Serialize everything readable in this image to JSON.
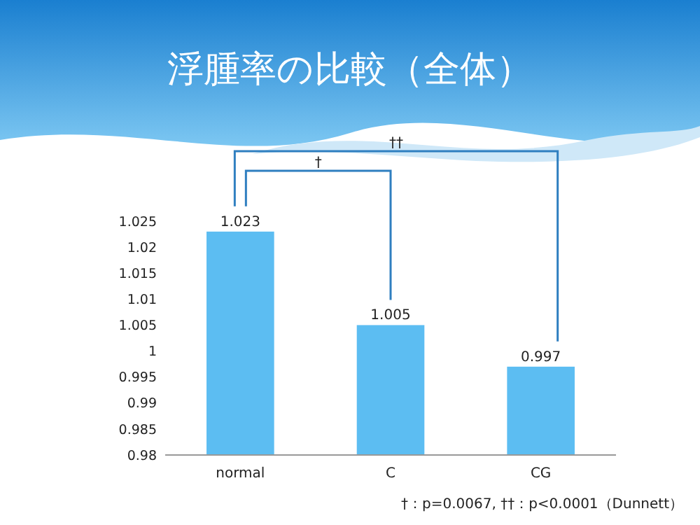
{
  "chart_data": {
    "type": "bar",
    "title": "浮腫率の比較（全体）",
    "categories": [
      "normal",
      "C",
      "CG"
    ],
    "values": [
      1.023,
      1.005,
      0.997
    ],
    "color": "#5cbdf2",
    "ylim": [
      0.98,
      1.025
    ],
    "yticks": [
      0.98,
      0.985,
      0.99,
      0.995,
      1,
      1.005,
      1.01,
      1.015,
      1.02,
      1.025
    ],
    "data_labels": true,
    "grid": false,
    "annotations": [
      "†",
      "††",
      "†：p=0.0067, ††：p<0.0001（Dunnett）"
    ]
  }
}
